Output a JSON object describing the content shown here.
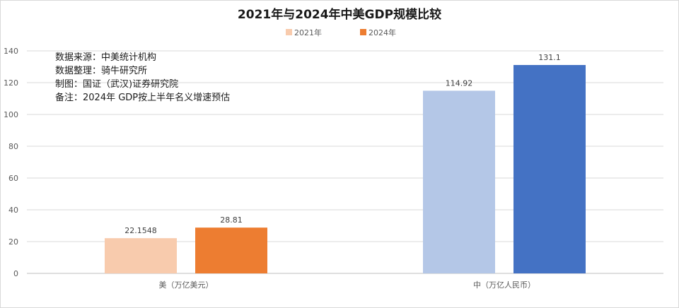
{
  "chart_data": {
    "type": "bar",
    "title": "2021年与2024年中美GDP规模比较",
    "categories": [
      "美（万亿美元）",
      "中（万亿人民币）"
    ],
    "legend": [
      "2021年",
      "2024年"
    ],
    "legend_position": "top",
    "ylim": [
      0,
      140
    ],
    "yticks": [
      "0",
      "20",
      "40",
      "60",
      "80",
      "100",
      "120",
      "140"
    ],
    "grid": true,
    "bars": [
      {
        "category_index": 0,
        "series_index": 0,
        "value": 22.1548,
        "label": "22.1548",
        "color": "#F8CBAD"
      },
      {
        "category_index": 0,
        "series_index": 1,
        "value": 28.81,
        "label": "28.81",
        "color": "#ED7D31"
      },
      {
        "category_index": 1,
        "series_index": 0,
        "value": 114.92,
        "label": "114.92",
        "color": "#B4C7E7"
      },
      {
        "category_index": 1,
        "series_index": 1,
        "value": 131.1,
        "label": "131.1",
        "color": "#4472C4"
      }
    ],
    "legend_colors": [
      "#F8CBAD",
      "#ED7D31"
    ],
    "annotations": [
      "数据来源：中美统计机构",
      "数据整理：骑牛研究所",
      "制图：国证（武汉)证券研究院",
      "备注：2024年 GDP按上半年名义增速预估"
    ]
  }
}
